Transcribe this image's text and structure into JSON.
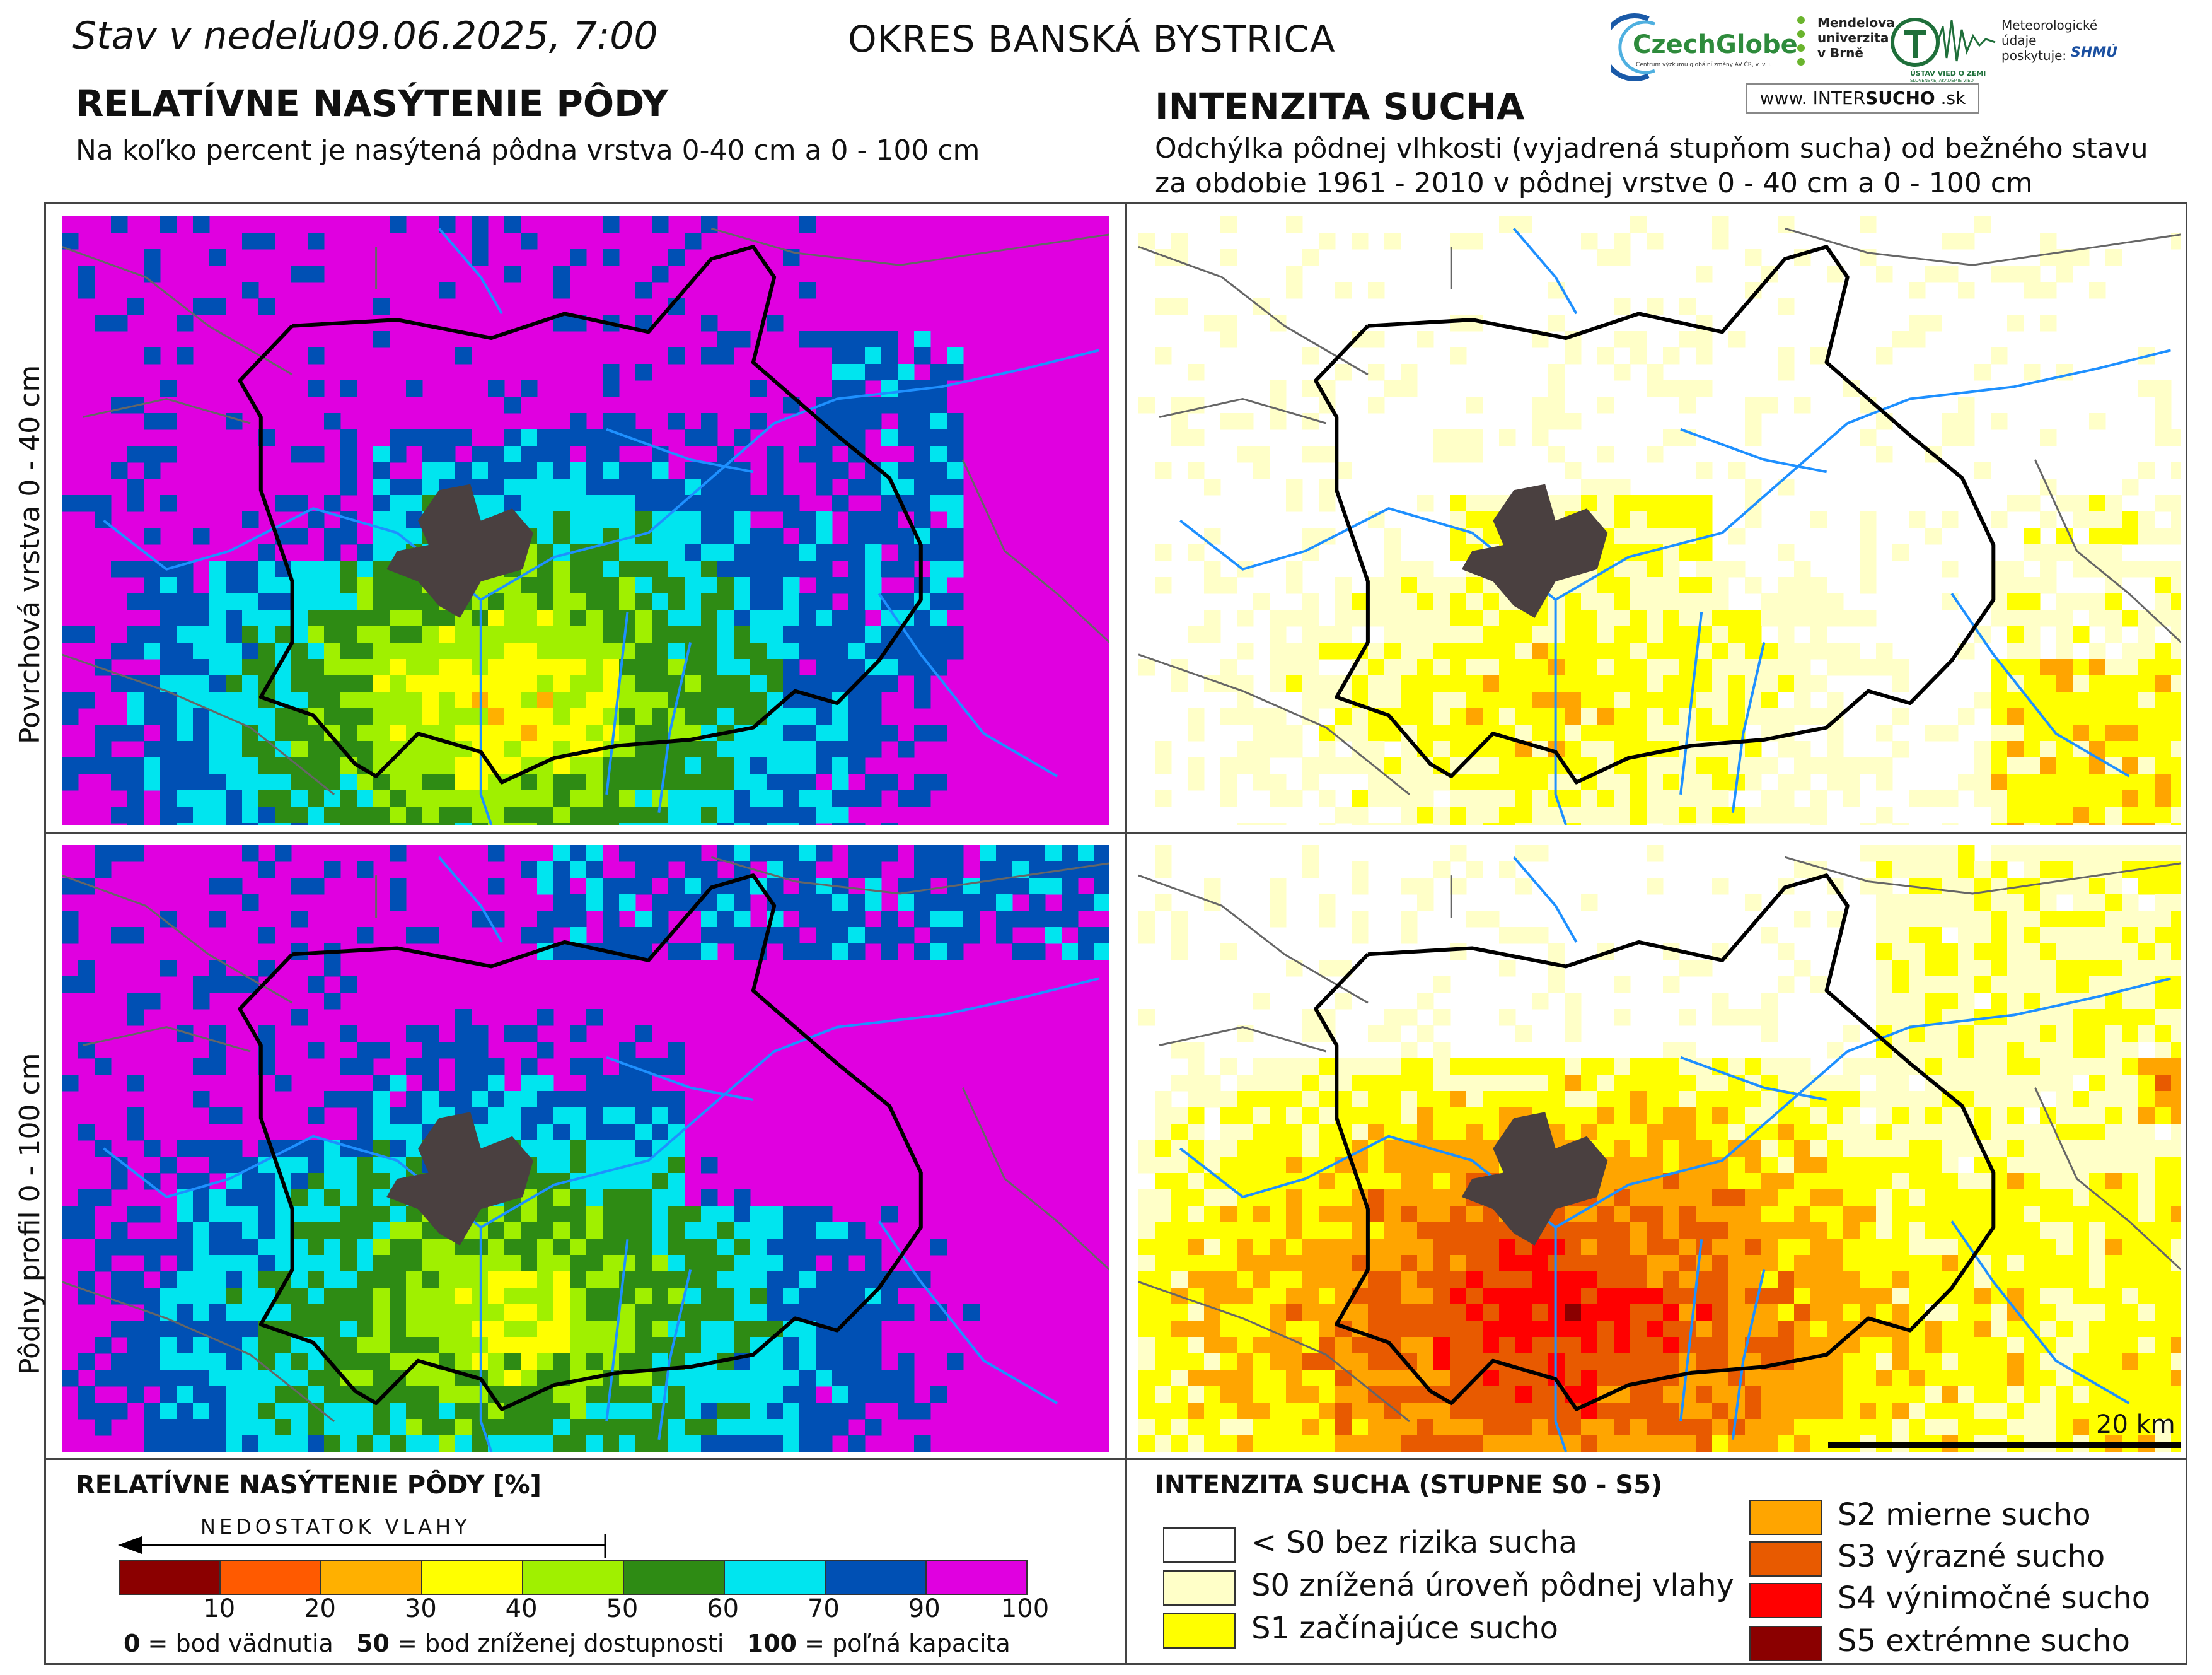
{
  "header": {
    "date_line": "Stav v nedeľu09.06.2025, 7:00",
    "district": "OKRES  BANSKÁ BYSTRICA",
    "left_title": "RELATÍVNE NASÝTENIE PÔDY",
    "left_subtitle": "Na koľko percent je nasýtená pôdna vrstva 0-40 cm a 0 - 100 cm",
    "right_title": "INTENZITA SUCHA",
    "right_subtitle_1": "Odchýlka pôdnej vlhkosti (vyjadrená stupňom sucha) od bežného stavu",
    "right_subtitle_2": "za obdobie 1961 - 2010 v pôdnej vrstve 0 - 40 cm a 0 - 100 cm"
  },
  "logos": {
    "czechglobe": "CzechGlobe",
    "czechglobe_sub": "Centrum výzkumu globální změny AV ČR, v. v. i.",
    "mendel": [
      "Mendelova",
      "univerzita",
      "v Brně"
    ],
    "uvz": "ÚSTAV VIED O ZEMI",
    "uvz_sub": "SLOVENSKEJ AKADÉMIE VIED",
    "meteo": [
      "Meteorologické",
      "údaje",
      "poskytuje:"
    ],
    "shmu": "SHMÚ",
    "intersucho_prefix": "www. INTER",
    "intersucho_bold": "SUCHO",
    "intersucho_suffix": " .sk"
  },
  "rows": {
    "top_label": "Povrchová vrstva 0 - 40 cm",
    "bottom_label": "Pôdny profil 0 - 100 cm"
  },
  "scale_bar": "20 km",
  "legend_saturation": {
    "title": "RELATÍVNE NASÝTENIE PÔDY [%]",
    "arrow_label": "NEDOSTATOK VLAHY",
    "bins": [
      {
        "from": 0,
        "to": 10,
        "color": "#8b0000"
      },
      {
        "from": 10,
        "to": 20,
        "color": "#ff5a00"
      },
      {
        "from": 20,
        "to": 30,
        "color": "#ffb000"
      },
      {
        "from": 30,
        "to": 40,
        "color": "#ffff00"
      },
      {
        "from": 40,
        "to": 50,
        "color": "#a0f000"
      },
      {
        "from": 50,
        "to": 60,
        "color": "#2e8b14"
      },
      {
        "from": 60,
        "to": 70,
        "color": "#00e5ef"
      },
      {
        "from": 70,
        "to": 90,
        "color": "#0050b4"
      },
      {
        "from": 90,
        "to": 100,
        "color": "#e000e0"
      }
    ],
    "tick_labels": [
      "10",
      "20",
      "30",
      "40",
      "50",
      "60",
      "70",
      "90",
      "100"
    ],
    "note_0_num": "0",
    "note_0_text": " = bod vädnutia",
    "note_50_num": "50",
    "note_50_text": " = bod zníženej dostupnosti",
    "note_100_num": "100",
    "note_100_text": " = poľná kapacita"
  },
  "legend_drought": {
    "title": "INTENZITA SUCHA (STUPNE S0 - S5)",
    "items": [
      {
        "label": "< S0 bez rizika sucha",
        "color": "#ffffff"
      },
      {
        "label": "S0 znížená úroveň pôdnej vlahy",
        "color": "#ffffc8"
      },
      {
        "label": "S1 začínajúce sucho",
        "color": "#ffff00"
      },
      {
        "label": "S2 mierne sucho",
        "color": "#ffa500"
      },
      {
        "label": "S3 výrazné sucho",
        "color": "#e85a00"
      },
      {
        "label": "S4 výnimočné sucho",
        "color": "#ff0000"
      },
      {
        "label": "S5 extrémne sucho",
        "color": "#8b0000"
      }
    ]
  },
  "map_colors": {
    "district_border": "#000000",
    "rivers": "#1e90ff",
    "city": "#4a4040",
    "roads": "#666666"
  }
}
